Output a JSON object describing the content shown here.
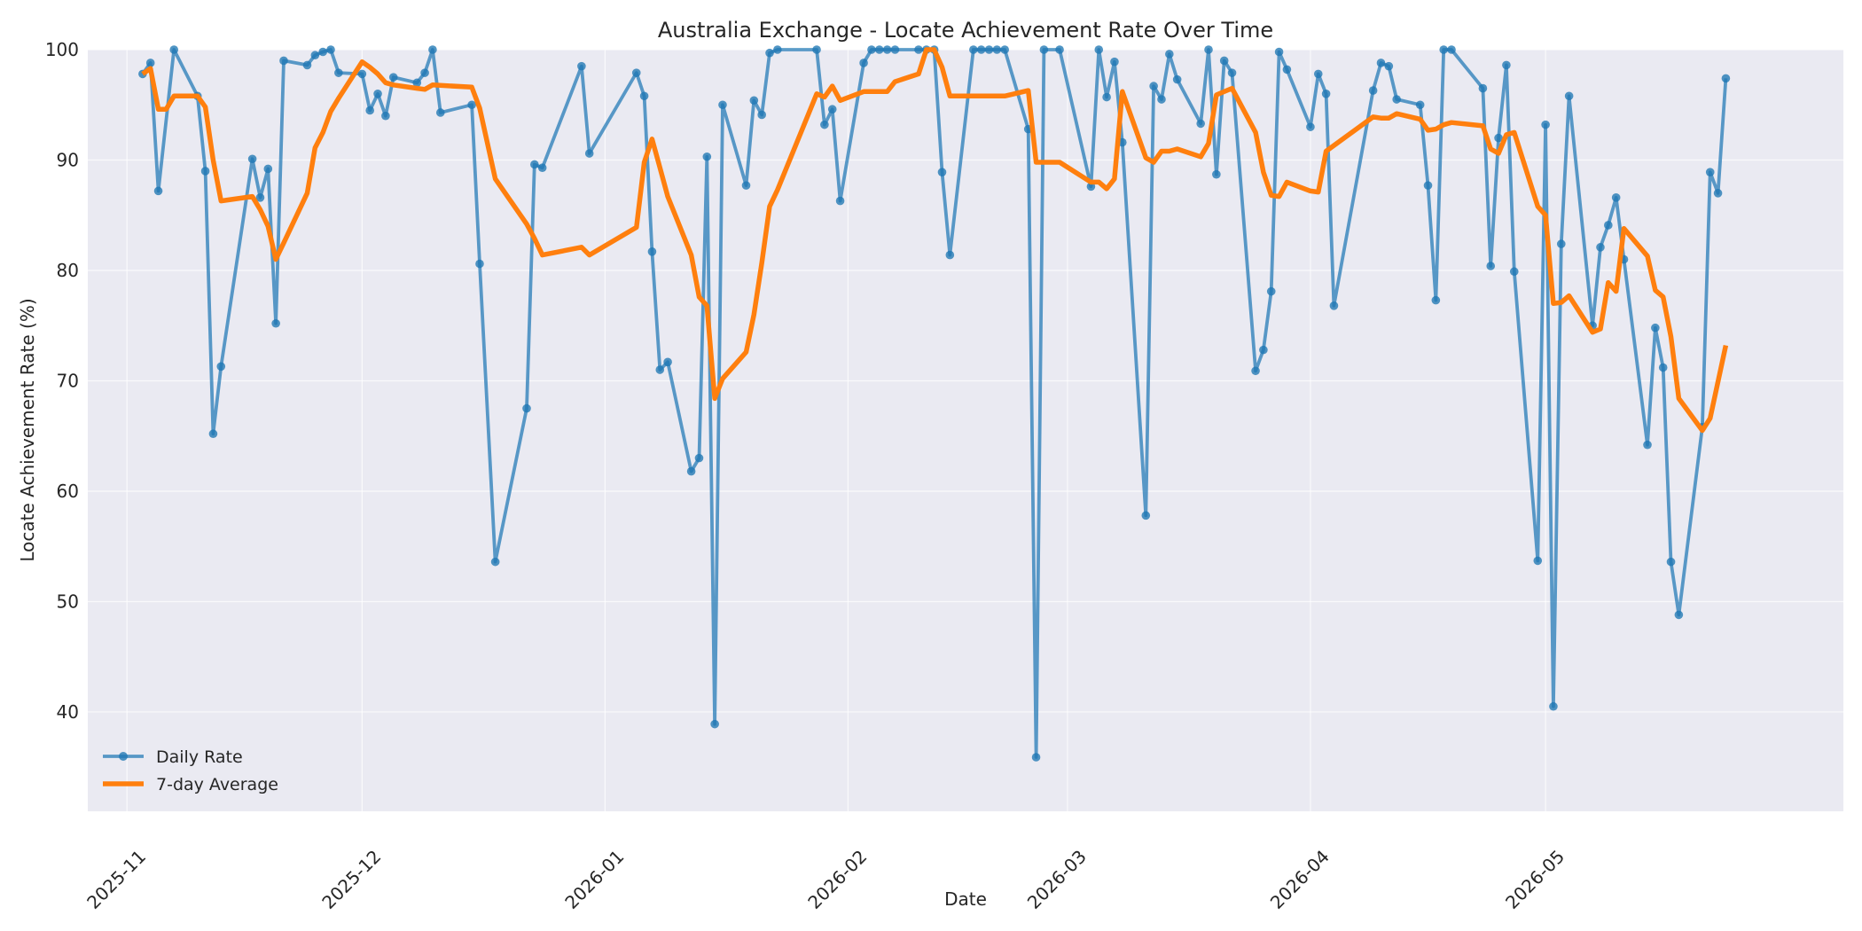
{
  "chart_data": {
    "type": "line",
    "title": "Australia Exchange - Locate Achievement Rate Over Time",
    "xlabel": "Date",
    "ylabel": "Locate Achievement Rate (%)",
    "xlim": [
      "2025-10-27",
      "2026-06-08"
    ],
    "ylim": [
      31,
      100
    ],
    "y_ticks": [
      40,
      50,
      60,
      70,
      80,
      90,
      100
    ],
    "x_ticks": [
      {
        "date": "2025-11-01",
        "label": "2025-11"
      },
      {
        "date": "2025-12-01",
        "label": "2025-12"
      },
      {
        "date": "2026-01-01",
        "label": "2026-01"
      },
      {
        "date": "2026-02-01",
        "label": "2026-02"
      },
      {
        "date": "2026-03-01",
        "label": "2026-03"
      },
      {
        "date": "2026-04-01",
        "label": "2026-04"
      },
      {
        "date": "2026-05-01",
        "label": "2026-05"
      }
    ],
    "grid": true,
    "legend_position": "bottom-left",
    "colors": {
      "daily": "#1f77b4",
      "avg": "#ff7f0e",
      "plot_bg": "#eaeaf2"
    },
    "series": [
      {
        "name": "Daily Rate",
        "marker": "circle",
        "points": [
          [
            "2025-11-03",
            97.8
          ],
          [
            "2025-11-04",
            98.8
          ],
          [
            "2025-11-05",
            87.2
          ],
          [
            "2025-11-07",
            100
          ],
          [
            "2025-11-10",
            95.8
          ],
          [
            "2025-11-11",
            89.0
          ],
          [
            "2025-11-12",
            65.2
          ],
          [
            "2025-11-13",
            71.3
          ],
          [
            "2025-11-17",
            90.1
          ],
          [
            "2025-11-18",
            86.6
          ],
          [
            "2025-11-19",
            89.2
          ],
          [
            "2025-11-20",
            75.2
          ],
          [
            "2025-11-21",
            99.0
          ],
          [
            "2025-11-24",
            98.6
          ],
          [
            "2025-11-25",
            99.5
          ],
          [
            "2025-11-26",
            99.8
          ],
          [
            "2025-11-27",
            100
          ],
          [
            "2025-11-28",
            97.9
          ],
          [
            "2025-12-01",
            97.8
          ],
          [
            "2025-12-02",
            94.5
          ],
          [
            "2025-12-03",
            96.0
          ],
          [
            "2025-12-04",
            94.0
          ],
          [
            "2025-12-05",
            97.5
          ],
          [
            "2025-12-08",
            97.0
          ],
          [
            "2025-12-09",
            97.9
          ],
          [
            "2025-12-10",
            100
          ],
          [
            "2025-12-11",
            94.3
          ],
          [
            "2025-12-15",
            95.0
          ],
          [
            "2025-12-16",
            80.6
          ],
          [
            "2025-12-18",
            53.6
          ],
          [
            "2025-12-22",
            67.5
          ],
          [
            "2025-12-23",
            89.6
          ],
          [
            "2025-12-24",
            89.3
          ],
          [
            "2025-12-29",
            98.5
          ],
          [
            "2025-12-30",
            90.6
          ],
          [
            "2026-01-05",
            97.9
          ],
          [
            "2026-01-06",
            95.8
          ],
          [
            "2026-01-07",
            81.7
          ],
          [
            "2026-01-08",
            71.0
          ],
          [
            "2026-01-09",
            71.7
          ],
          [
            "2026-01-12",
            61.8
          ],
          [
            "2026-01-13",
            63.0
          ],
          [
            "2026-01-14",
            90.3
          ],
          [
            "2026-01-15",
            38.9
          ],
          [
            "2026-01-16",
            95.0
          ],
          [
            "2026-01-19",
            87.7
          ],
          [
            "2026-01-20",
            95.4
          ],
          [
            "2026-01-21",
            94.1
          ],
          [
            "2026-01-22",
            99.7
          ],
          [
            "2026-01-23",
            100
          ],
          [
            "2026-01-28",
            100
          ],
          [
            "2026-01-29",
            93.2
          ],
          [
            "2026-01-30",
            94.6
          ],
          [
            "2026-01-31",
            86.3
          ],
          [
            "2026-02-03",
            98.8
          ],
          [
            "2026-02-04",
            100
          ],
          [
            "2026-02-05",
            100
          ],
          [
            "2026-02-06",
            100
          ],
          [
            "2026-02-07",
            100
          ],
          [
            "2026-02-10",
            100
          ],
          [
            "2026-02-11",
            100
          ],
          [
            "2026-02-12",
            100
          ],
          [
            "2026-02-13",
            88.9
          ],
          [
            "2026-02-14",
            81.4
          ],
          [
            "2026-02-17",
            100
          ],
          [
            "2026-02-18",
            100
          ],
          [
            "2026-02-19",
            100
          ],
          [
            "2026-02-20",
            100
          ],
          [
            "2026-02-21",
            100
          ],
          [
            "2026-02-24",
            92.8
          ],
          [
            "2026-02-25",
            35.9
          ],
          [
            "2026-02-26",
            100
          ],
          [
            "2026-02-28",
            100
          ],
          [
            "2026-03-04",
            87.6
          ],
          [
            "2026-03-05",
            100
          ],
          [
            "2026-03-06",
            95.7
          ],
          [
            "2026-03-07",
            98.9
          ],
          [
            "2026-03-08",
            91.6
          ],
          [
            "2026-03-11",
            57.8
          ],
          [
            "2026-03-12",
            96.7
          ],
          [
            "2026-03-13",
            95.5
          ],
          [
            "2026-03-14",
            99.6
          ],
          [
            "2026-03-15",
            97.3
          ],
          [
            "2026-03-18",
            93.3
          ],
          [
            "2026-03-19",
            100
          ],
          [
            "2026-03-20",
            88.7
          ],
          [
            "2026-03-21",
            99.0
          ],
          [
            "2026-03-22",
            97.9
          ],
          [
            "2026-03-25",
            70.9
          ],
          [
            "2026-03-26",
            72.8
          ],
          [
            "2026-03-27",
            78.1
          ],
          [
            "2026-03-28",
            99.8
          ],
          [
            "2026-03-29",
            98.2
          ],
          [
            "2026-04-01",
            93.0
          ],
          [
            "2026-04-02",
            97.8
          ],
          [
            "2026-04-03",
            96.0
          ],
          [
            "2026-04-04",
            76.8
          ],
          [
            "2026-04-09",
            96.3
          ],
          [
            "2026-04-10",
            98.8
          ],
          [
            "2026-04-11",
            98.5
          ],
          [
            "2026-04-12",
            95.5
          ],
          [
            "2026-04-15",
            95.0
          ],
          [
            "2026-04-16",
            87.7
          ],
          [
            "2026-04-17",
            77.3
          ],
          [
            "2026-04-18",
            100
          ],
          [
            "2026-04-19",
            100
          ],
          [
            "2026-04-23",
            96.5
          ],
          [
            "2026-04-24",
            80.4
          ],
          [
            "2026-04-25",
            92.0
          ],
          [
            "2026-04-26",
            98.6
          ],
          [
            "2026-04-27",
            79.9
          ],
          [
            "2026-04-30",
            53.7
          ],
          [
            "2026-05-01",
            93.2
          ],
          [
            "2026-05-02",
            40.5
          ],
          [
            "2026-05-03",
            82.4
          ],
          [
            "2026-05-04",
            95.8
          ],
          [
            "2026-05-07",
            75.0
          ],
          [
            "2026-05-08",
            82.1
          ],
          [
            "2026-05-09",
            84.1
          ],
          [
            "2026-05-10",
            86.6
          ],
          [
            "2026-05-11",
            81.0
          ],
          [
            "2026-05-14",
            64.2
          ],
          [
            "2026-05-15",
            74.8
          ],
          [
            "2026-05-16",
            71.2
          ],
          [
            "2026-05-17",
            53.6
          ],
          [
            "2026-05-18",
            48.8
          ],
          [
            "2026-05-21",
            65.8
          ],
          [
            "2026-05-22",
            88.9
          ],
          [
            "2026-05-23",
            87.0
          ],
          [
            "2026-05-24",
            97.4
          ]
        ]
      },
      {
        "name": "7-day Average",
        "marker": "none",
        "points": [
          [
            "2025-11-03",
            97.8
          ],
          [
            "2025-11-04",
            98.3
          ],
          [
            "2025-11-05",
            94.6
          ],
          [
            "2025-11-06",
            94.6
          ],
          [
            "2025-11-07",
            95.8
          ],
          [
            "2025-11-10",
            95.8
          ],
          [
            "2025-11-11",
            94.8
          ],
          [
            "2025-11-12",
            90.0
          ],
          [
            "2025-11-13",
            86.3
          ],
          [
            "2025-11-17",
            86.7
          ],
          [
            "2025-11-18",
            85.5
          ],
          [
            "2025-11-19",
            84.0
          ],
          [
            "2025-11-20",
            81.0
          ],
          [
            "2025-11-21",
            82.5
          ],
          [
            "2025-11-24",
            87.0
          ],
          [
            "2025-11-25",
            91.1
          ],
          [
            "2025-11-26",
            92.5
          ],
          [
            "2025-11-27",
            94.4
          ],
          [
            "2025-11-28",
            95.6
          ],
          [
            "2025-12-01",
            98.9
          ],
          [
            "2025-12-02",
            98.4
          ],
          [
            "2025-12-03",
            97.8
          ],
          [
            "2025-12-04",
            97.0
          ],
          [
            "2025-12-05",
            96.8
          ],
          [
            "2025-12-08",
            96.5
          ],
          [
            "2025-12-09",
            96.4
          ],
          [
            "2025-12-10",
            96.8
          ],
          [
            "2025-12-15",
            96.6
          ],
          [
            "2025-12-16",
            94.7
          ],
          [
            "2025-12-18",
            88.3
          ],
          [
            "2025-12-22",
            84.2
          ],
          [
            "2025-12-23",
            82.9
          ],
          [
            "2025-12-24",
            81.4
          ],
          [
            "2025-12-29",
            82.1
          ],
          [
            "2025-12-30",
            81.4
          ],
          [
            "2026-01-05",
            83.9
          ],
          [
            "2026-01-06",
            89.8
          ],
          [
            "2026-01-07",
            91.9
          ],
          [
            "2026-01-08",
            89.3
          ],
          [
            "2026-01-09",
            86.7
          ],
          [
            "2026-01-12",
            81.4
          ],
          [
            "2026-01-13",
            77.6
          ],
          [
            "2026-01-14",
            76.8
          ],
          [
            "2026-01-15",
            68.4
          ],
          [
            "2026-01-16",
            70.2
          ],
          [
            "2026-01-19",
            72.6
          ],
          [
            "2026-01-20",
            76.0
          ],
          [
            "2026-01-21",
            80.7
          ],
          [
            "2026-01-22",
            85.8
          ],
          [
            "2026-01-23",
            87.3
          ],
          [
            "2026-01-28",
            96.0
          ],
          [
            "2026-01-29",
            95.7
          ],
          [
            "2026-01-30",
            96.7
          ],
          [
            "2026-01-31",
            95.4
          ],
          [
            "2026-02-03",
            96.2
          ],
          [
            "2026-02-06",
            96.2
          ],
          [
            "2026-02-07",
            97.1
          ],
          [
            "2026-02-10",
            97.8
          ],
          [
            "2026-02-11",
            100
          ],
          [
            "2026-02-12",
            100
          ],
          [
            "2026-02-13",
            98.4
          ],
          [
            "2026-02-14",
            95.8
          ],
          [
            "2026-02-21",
            95.8
          ],
          [
            "2026-02-24",
            96.3
          ],
          [
            "2026-02-25",
            89.8
          ],
          [
            "2026-02-28",
            89.8
          ],
          [
            "2026-03-04",
            88.0
          ],
          [
            "2026-03-05",
            88.0
          ],
          [
            "2026-03-06",
            87.4
          ],
          [
            "2026-03-07",
            88.3
          ],
          [
            "2026-03-08",
            96.2
          ],
          [
            "2026-03-11",
            90.2
          ],
          [
            "2026-03-12",
            89.8
          ],
          [
            "2026-03-13",
            90.8
          ],
          [
            "2026-03-14",
            90.8
          ],
          [
            "2026-03-15",
            91.0
          ],
          [
            "2026-03-18",
            90.3
          ],
          [
            "2026-03-19",
            91.5
          ],
          [
            "2026-03-20",
            95.9
          ],
          [
            "2026-03-22",
            96.5
          ],
          [
            "2026-03-25",
            92.5
          ],
          [
            "2026-03-26",
            88.9
          ],
          [
            "2026-03-27",
            86.8
          ],
          [
            "2026-03-28",
            86.7
          ],
          [
            "2026-03-29",
            88.0
          ],
          [
            "2026-04-01",
            87.2
          ],
          [
            "2026-04-02",
            87.1
          ],
          [
            "2026-04-03",
            90.8
          ],
          [
            "2026-04-09",
            93.9
          ],
          [
            "2026-04-10",
            93.8
          ],
          [
            "2026-04-11",
            93.8
          ],
          [
            "2026-04-12",
            94.2
          ],
          [
            "2026-04-15",
            93.7
          ],
          [
            "2026-04-16",
            92.7
          ],
          [
            "2026-04-17",
            92.8
          ],
          [
            "2026-04-18",
            93.2
          ],
          [
            "2026-04-19",
            93.4
          ],
          [
            "2026-04-23",
            93.1
          ],
          [
            "2026-04-24",
            91.0
          ],
          [
            "2026-04-25",
            90.6
          ],
          [
            "2026-04-26",
            92.3
          ],
          [
            "2026-04-27",
            92.5
          ],
          [
            "2026-04-30",
            85.8
          ],
          [
            "2026-05-01",
            85.0
          ],
          [
            "2026-05-02",
            77.0
          ],
          [
            "2026-05-03",
            77.1
          ],
          [
            "2026-05-04",
            77.7
          ],
          [
            "2026-05-07",
            74.4
          ],
          [
            "2026-05-08",
            74.7
          ],
          [
            "2026-05-09",
            78.9
          ],
          [
            "2026-05-10",
            78.1
          ],
          [
            "2026-05-11",
            83.8
          ],
          [
            "2026-05-14",
            81.3
          ],
          [
            "2026-05-15",
            78.2
          ],
          [
            "2026-05-16",
            77.6
          ],
          [
            "2026-05-17",
            74.0
          ],
          [
            "2026-05-18",
            68.4
          ],
          [
            "2026-05-21",
            65.5
          ],
          [
            "2026-05-22",
            66.6
          ],
          [
            "2026-05-24",
            73.2
          ]
        ]
      }
    ]
  }
}
